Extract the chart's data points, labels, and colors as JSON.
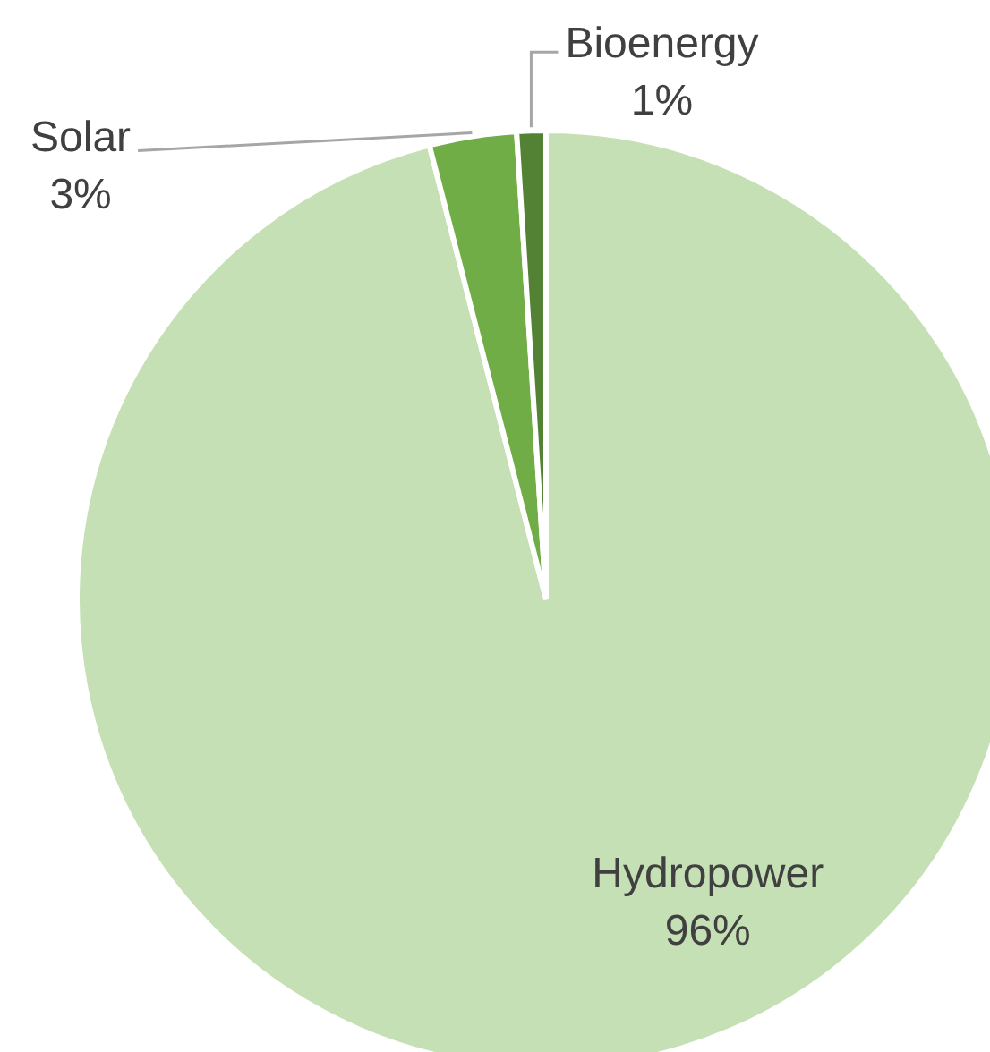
{
  "chart_data": {
    "type": "pie",
    "categories": [
      "Hydropower",
      "Solar",
      "Bioenergy"
    ],
    "values": [
      96,
      3,
      1
    ],
    "colors": [
      "#c5e0b4",
      "#70ad47",
      "#548235"
    ],
    "value_labels": [
      "96%",
      "3%",
      "1%"
    ]
  }
}
